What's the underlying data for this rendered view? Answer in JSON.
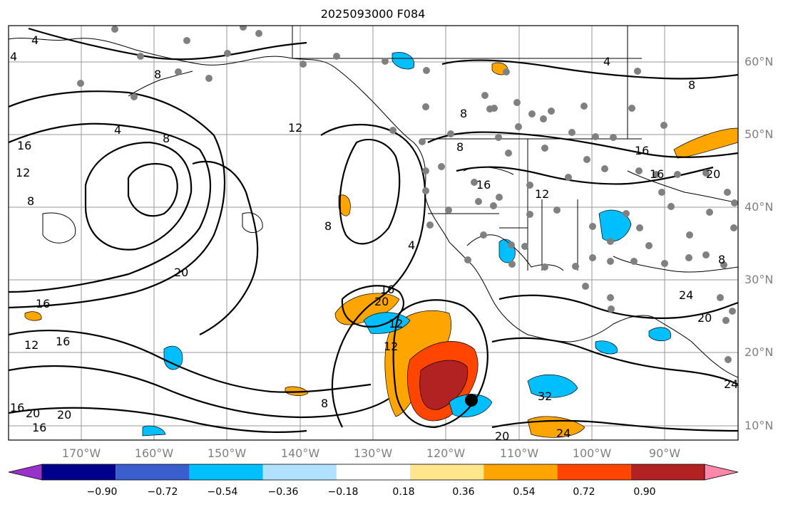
{
  "title": "2025093000 F084",
  "lat_labels": [
    "60°N",
    "50°N",
    "40°N",
    "30°N",
    "20°N",
    "10°N"
  ],
  "lon_labels": [
    "170°W",
    "160°W",
    "150°W",
    "140°W",
    "130°W",
    "120°W",
    "110°W",
    "100°W",
    "90°W"
  ],
  "colorbar": {
    "colors": [
      "#9932cc",
      "#00008b",
      "#3a5fcd",
      "#00bfff",
      "#b0e2ff",
      "#ffffff",
      "#ffe68c",
      "#ffa500",
      "#ff4500",
      "#b22222",
      "#ff88aa"
    ],
    "tick_labels": [
      "−0.90",
      "−0.72",
      "−0.54",
      "−0.36",
      "−0.18",
      "0.18",
      "0.36",
      "0.54",
      "0.72",
      "0.90"
    ]
  },
  "contour_labels": [
    "4",
    "8",
    "12",
    "16",
    "20",
    "24",
    "32"
  ],
  "storm_marker": "tropical-cyclone-center",
  "stations": "grey-dots"
}
